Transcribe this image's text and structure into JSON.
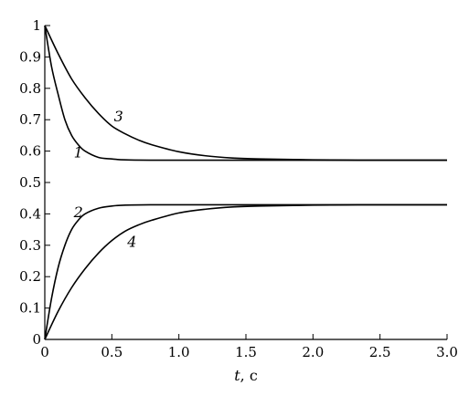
{
  "chart_data": {
    "type": "line",
    "xlabel_var": "t",
    "xlabel_unit": ", c",
    "ylabel": "",
    "xlim": [
      0,
      3.0
    ],
    "ylim": [
      0,
      1
    ],
    "grid": false,
    "x_ticks": [
      "0",
      "0.5",
      "1.0",
      "1.5",
      "2.0",
      "2.5",
      "3.0"
    ],
    "y_ticks": [
      "0",
      "0.1",
      "0.2",
      "0.3",
      "0.4",
      "0.5",
      "0.6",
      "0.7",
      "0.8",
      "0.9",
      "1"
    ],
    "series": [
      {
        "name": "1",
        "x": [
          0,
          0.05,
          0.1,
          0.15,
          0.2,
          0.25,
          0.3,
          0.4,
          0.5,
          0.6,
          0.8,
          1.0,
          1.5,
          2.0,
          2.5,
          3.0
        ],
        "y": [
          1.0,
          0.87,
          0.78,
          0.7,
          0.65,
          0.62,
          0.6,
          0.58,
          0.575,
          0.572,
          0.571,
          0.571,
          0.571,
          0.571,
          0.571,
          0.571
        ]
      },
      {
        "name": "2",
        "x": [
          0,
          0.05,
          0.1,
          0.15,
          0.2,
          0.25,
          0.3,
          0.4,
          0.5,
          0.6,
          0.8,
          1.0,
          1.5,
          2.0,
          2.5,
          3.0
        ],
        "y": [
          0.0,
          0.13,
          0.23,
          0.3,
          0.35,
          0.38,
          0.4,
          0.418,
          0.425,
          0.428,
          0.429,
          0.429,
          0.429,
          0.429,
          0.429,
          0.429
        ]
      },
      {
        "name": "3",
        "x": [
          0,
          0.1,
          0.2,
          0.3,
          0.4,
          0.5,
          0.6,
          0.7,
          0.8,
          1.0,
          1.2,
          1.4,
          1.6,
          2.0,
          2.5,
          3.0
        ],
        "y": [
          1.0,
          0.91,
          0.83,
          0.77,
          0.72,
          0.68,
          0.655,
          0.635,
          0.62,
          0.598,
          0.585,
          0.578,
          0.575,
          0.572,
          0.571,
          0.571
        ]
      },
      {
        "name": "4",
        "x": [
          0,
          0.1,
          0.2,
          0.3,
          0.4,
          0.5,
          0.6,
          0.7,
          0.8,
          1.0,
          1.2,
          1.4,
          1.6,
          2.0,
          2.5,
          3.0
        ],
        "y": [
          0.0,
          0.09,
          0.165,
          0.225,
          0.275,
          0.315,
          0.345,
          0.365,
          0.38,
          0.403,
          0.415,
          0.422,
          0.425,
          0.428,
          0.429,
          0.429
        ]
      }
    ],
    "curve_labels": [
      {
        "text": "1",
        "x": 0.25,
        "y": 0.58
      },
      {
        "text": "2",
        "x": 0.25,
        "y": 0.39
      },
      {
        "text": "3",
        "x": 0.55,
        "y": 0.695
      },
      {
        "text": "4",
        "x": 0.65,
        "y": 0.295
      }
    ]
  }
}
